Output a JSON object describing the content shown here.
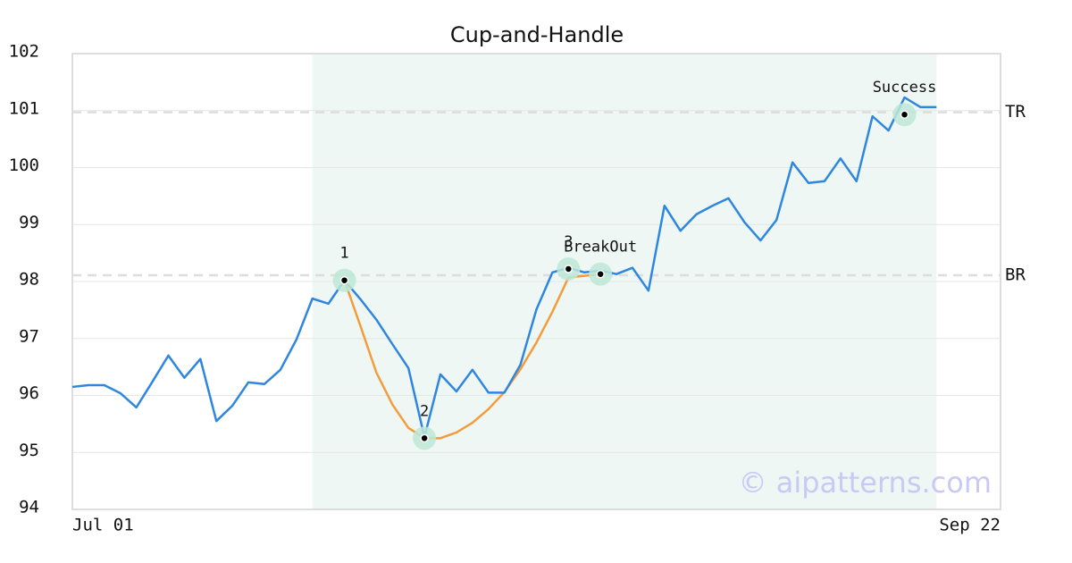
{
  "chart_data": {
    "type": "line",
    "title": "Cup-and-Handle",
    "categories": [
      "Jul 01",
      null,
      null,
      null,
      null,
      null,
      null,
      null,
      null,
      null,
      null,
      null,
      null,
      null,
      null,
      null,
      null,
      null,
      null,
      null,
      null,
      null,
      null,
      null,
      null,
      null,
      null,
      null,
      null,
      null,
      null,
      null,
      null,
      null,
      null,
      null,
      null,
      null,
      null,
      null,
      null,
      null,
      null,
      null,
      null,
      null,
      null,
      null,
      null,
      null,
      null,
      null,
      null,
      null,
      null,
      null,
      null,
      null,
      "Sep 22"
    ],
    "series": [
      {
        "color": "#2e86de",
        "values": [
          96.15,
          96.18,
          96.18,
          96.04,
          95.79,
          96.24,
          96.7,
          96.31,
          96.64,
          95.55,
          95.82,
          96.23,
          96.2,
          96.45,
          96.98,
          97.7,
          97.61,
          98.02,
          97.69,
          97.33,
          96.9,
          96.48,
          95.27,
          96.37,
          96.07,
          96.45,
          96.05,
          96.05,
          96.54,
          97.51,
          98.16,
          98.24,
          98.16,
          98.19,
          98.13,
          98.24,
          97.84,
          99.33,
          98.89,
          99.18,
          99.33,
          99.46,
          99.04,
          98.72,
          99.08,
          100.09,
          99.73,
          99.76,
          100.16,
          99.76,
          100.9,
          100.65,
          101.23,
          101.06,
          101.06,
          null,
          null,
          null,
          null
        ]
      },
      {
        "color": "#f39c3c",
        "values": [
          null,
          null,
          null,
          null,
          null,
          null,
          null,
          null,
          null,
          null,
          null,
          null,
          null,
          null,
          null,
          null,
          null,
          98.02,
          97.22,
          96.4,
          95.84,
          95.43,
          95.25,
          95.25,
          95.35,
          95.52,
          95.76,
          96.06,
          96.46,
          96.93,
          97.47,
          98.07,
          98.1,
          98.13,
          null,
          null,
          null,
          null,
          null,
          null,
          null,
          null,
          null,
          null,
          null,
          null,
          null,
          null,
          null,
          null,
          null,
          null,
          null,
          null,
          null,
          null,
          null,
          null,
          null
        ]
      }
    ],
    "points": [
      {
        "label": "1",
        "x": 17,
        "y": 98.02
      },
      {
        "label": "2",
        "x": 22,
        "y": 95.25
      },
      {
        "label": "3",
        "x": 31,
        "y": 98.22
      },
      {
        "label": "BreakOut",
        "x": 33,
        "y": 98.13
      },
      {
        "label": "Success",
        "x": 52,
        "y": 100.93
      }
    ],
    "levels": [
      {
        "label": "TR",
        "value": 100.97
      },
      {
        "label": "BR",
        "value": 98.11
      }
    ],
    "highlight": [
      15,
      54
    ],
    "watermark": "© aipatterns.com",
    "ylim": [
      94,
      102
    ],
    "yticks": [
      94,
      95,
      96,
      97,
      98,
      99,
      100,
      101,
      102
    ],
    "grid": true
  }
}
